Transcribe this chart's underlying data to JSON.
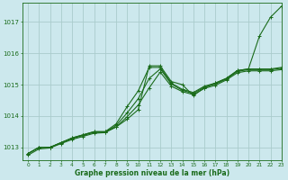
{
  "bg_color": "#cce8ed",
  "grid_color": "#aacccc",
  "line_color": "#1a6b1a",
  "xlabel": "Graphe pression niveau de la mer (hPa)",
  "xlim": [
    -0.5,
    23
  ],
  "ylim": [
    1012.6,
    1017.6
  ],
  "yticks": [
    1013,
    1014,
    1015,
    1016,
    1017
  ],
  "xticks": [
    0,
    1,
    2,
    3,
    4,
    5,
    6,
    7,
    8,
    9,
    10,
    11,
    12,
    13,
    14,
    15,
    16,
    17,
    18,
    19,
    20,
    21,
    22,
    23
  ],
  "series": [
    {
      "x": [
        0,
        1,
        2,
        3,
        4,
        5,
        6,
        7,
        8,
        9,
        10,
        11,
        12,
        13,
        14,
        15,
        16,
        17,
        18,
        19,
        20,
        21,
        22,
        23
      ],
      "y": [
        1012.8,
        1013.0,
        1013.0,
        1013.15,
        1013.3,
        1013.4,
        1013.5,
        1013.5,
        1013.65,
        1013.9,
        1014.2,
        1015.6,
        1015.6,
        1015.1,
        1015.0,
        1014.65,
        1014.9,
        1015.05,
        1015.2,
        1015.45,
        1015.5,
        1016.55,
        1017.15,
        1017.5
      ]
    },
    {
      "x": [
        0,
        1,
        2,
        3,
        4,
        5,
        6,
        7,
        8,
        9,
        10,
        11,
        12,
        13,
        14,
        15,
        16,
        17,
        18,
        19,
        20,
        21,
        22,
        23
      ],
      "y": [
        1012.8,
        1013.0,
        1013.0,
        1013.15,
        1013.3,
        1013.4,
        1013.5,
        1013.5,
        1013.75,
        1014.3,
        1014.8,
        1015.55,
        1015.55,
        1015.05,
        1014.85,
        1014.75,
        1014.95,
        1015.05,
        1015.2,
        1015.45,
        1015.5,
        1015.5,
        1015.5,
        1015.55
      ]
    },
    {
      "x": [
        0,
        1,
        2,
        3,
        4,
        5,
        6,
        7,
        8,
        9,
        10,
        11,
        12,
        13,
        14,
        15,
        16,
        17,
        18,
        19,
        20,
        21,
        22,
        23
      ],
      "y": [
        1012.8,
        1013.0,
        1013.0,
        1013.15,
        1013.28,
        1013.38,
        1013.48,
        1013.48,
        1013.7,
        1014.1,
        1014.55,
        1015.2,
        1015.5,
        1015.02,
        1014.82,
        1014.72,
        1014.92,
        1015.02,
        1015.18,
        1015.42,
        1015.48,
        1015.48,
        1015.48,
        1015.52
      ]
    },
    {
      "x": [
        0,
        1,
        2,
        3,
        4,
        5,
        6,
        7,
        8,
        9,
        10,
        11,
        12,
        13,
        14,
        15,
        16,
        17,
        18,
        19,
        20,
        21,
        22,
        23
      ],
      "y": [
        1012.75,
        1012.95,
        1012.98,
        1013.12,
        1013.25,
        1013.35,
        1013.45,
        1013.47,
        1013.65,
        1013.98,
        1014.35,
        1014.9,
        1015.4,
        1014.95,
        1014.78,
        1014.68,
        1014.88,
        1014.98,
        1015.15,
        1015.38,
        1015.44,
        1015.44,
        1015.44,
        1015.48
      ]
    }
  ]
}
